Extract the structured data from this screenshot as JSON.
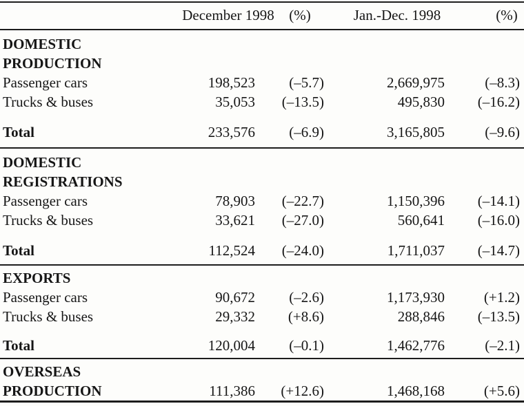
{
  "colors": {
    "background": "#fdfdfb",
    "text": "#161616",
    "rule": "#1c1c1c"
  },
  "table": {
    "header": {
      "dec_label": "December 1998",
      "dec_pct_label": "(%)",
      "ytd_label": "Jan.-Dec. 1998",
      "ytd_pct_label": "(%)"
    },
    "sections": [
      {
        "title_lines": [
          "DOMESTIC",
          "PRODUCTION"
        ],
        "rows": [
          {
            "label": "Passenger cars",
            "dec": "198,523",
            "dec_pct": "(–5.7)",
            "ytd": "2,669,975",
            "ytd_pct": "(–8.3)"
          },
          {
            "label": "Trucks & buses",
            "dec": "35,053",
            "dec_pct": "(–13.5)",
            "ytd": "495,830",
            "ytd_pct": "(–16.2)"
          }
        ],
        "total": {
          "label": "Total",
          "dec": "233,576",
          "dec_pct": "(–6.9)",
          "ytd": "3,165,805",
          "ytd_pct": "(–9.6)"
        }
      },
      {
        "title_lines": [
          "DOMESTIC",
          "REGISTRATIONS"
        ],
        "rows": [
          {
            "label": "Passenger cars",
            "dec": "78,903",
            "dec_pct": "(–22.7)",
            "ytd": "1,150,396",
            "ytd_pct": "(–14.1)"
          },
          {
            "label": "Trucks & buses",
            "dec": "33,621",
            "dec_pct": "(–27.0)",
            "ytd": "560,641",
            "ytd_pct": "(–16.0)"
          }
        ],
        "total": {
          "label": "Total",
          "dec": "112,524",
          "dec_pct": "(–24.0)",
          "ytd": "1,711,037",
          "ytd_pct": "(–14.7)"
        }
      },
      {
        "title_lines": [
          "EXPORTS"
        ],
        "rows": [
          {
            "label": "Passenger cars",
            "dec": "90,672",
            "dec_pct": "(–2.6)",
            "ytd": "1,173,930",
            "ytd_pct": "(+1.2)"
          },
          {
            "label": "Trucks & buses",
            "dec": "29,332",
            "dec_pct": "(+8.6)",
            "ytd": "288,846",
            "ytd_pct": "(–13.5)"
          }
        ],
        "total": {
          "label": "Total",
          "dec": "120,004",
          "dec_pct": "(–0.1)",
          "ytd": "1,462,776",
          "ytd_pct": "(–2.1)"
        }
      },
      {
        "title_lines": [
          "OVERSEAS"
        ],
        "rows": [],
        "total": {
          "label": "PRODUCTION",
          "dec": "111,386",
          "dec_pct": "(+12.6)",
          "ytd": "1,468,168",
          "ytd_pct": "(+5.6)"
        }
      }
    ]
  }
}
